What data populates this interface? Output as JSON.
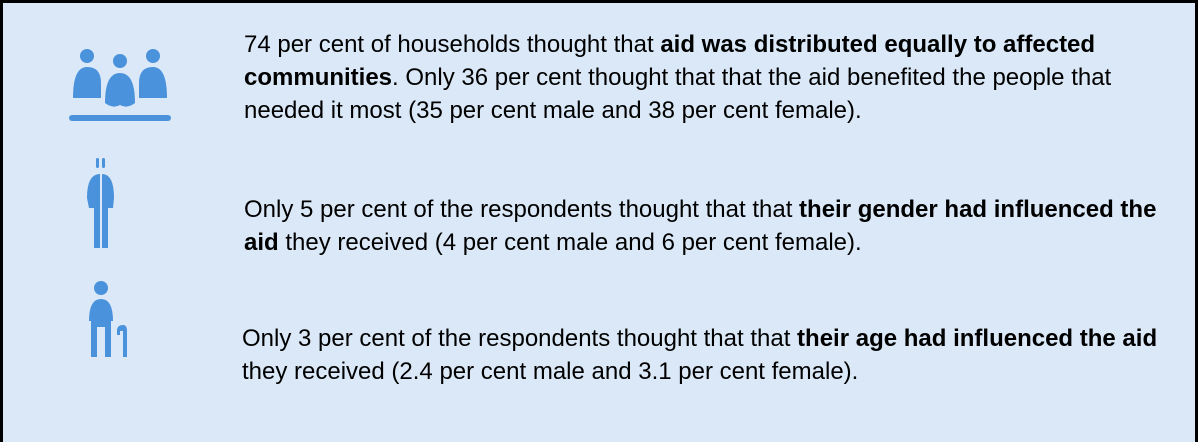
{
  "items": [
    {
      "segments": [
        {
          "text": "74 per cent of households thought that ",
          "bold": false
        },
        {
          "text": "aid was distributed equally to affected communities",
          "bold": true
        },
        {
          "text": ". Only 36 per cent thought that that the aid benefited the people that needed it most (35 per cent male and 38 per cent female).",
          "bold": false
        }
      ]
    },
    {
      "segments": [
        {
          "text": "Only 5 per cent of the respondents thought that that ",
          "bold": false
        },
        {
          "text": "their gender had influenced the aid",
          "bold": true
        },
        {
          "text": " they received (4 per cent male and 6 per cent female).",
          "bold": false
        }
      ]
    },
    {
      "segments": [
        {
          "text": "Only 3 per cent of the respondents thought that that ",
          "bold": false
        },
        {
          "text": "their age had influenced the aid",
          "bold": true
        },
        {
          "text": " they received (2.4 per cent male and 3.1 per cent female).",
          "bold": false
        }
      ]
    }
  ]
}
